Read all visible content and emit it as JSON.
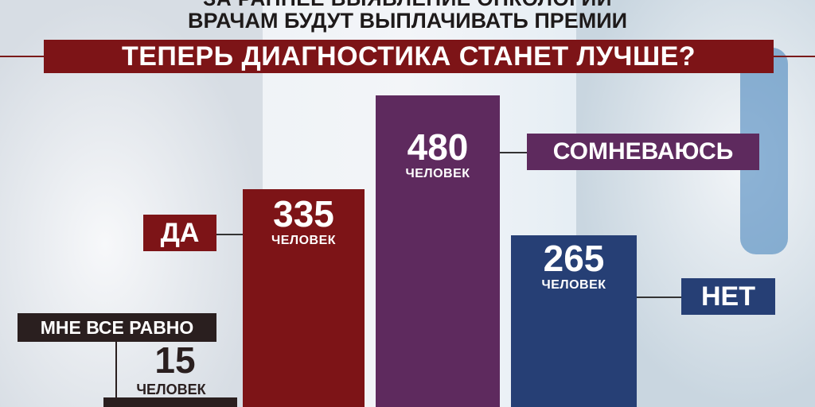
{
  "header": {
    "line0": "ЗА РАННЕЕ ВЫЯВЛЕНИЕ ОНКОЛОГИИ",
    "line1": "ВРАЧАМ БУДУТ ВЫПЛАЧИВАТЬ ПРЕМИИ",
    "question": "ТЕПЕРЬ ДИАГНОСТИКА СТАНЕТ ЛУЧШЕ?"
  },
  "chart_data": {
    "type": "bar",
    "title": "ТЕПЕРЬ ДИАГНОСТИКА СТАНЕТ ЛУЧШЕ?",
    "unit": "человек",
    "categories": [
      "МНЕ ВСЕ РАВНО",
      "ДА",
      "СОМНЕВАЮСЬ",
      "НЕТ"
    ],
    "values": [
      15,
      335,
      480,
      265
    ],
    "display": [
      {
        "label": "МНЕ ВСЕ РАВНО",
        "value": "15",
        "unit": "ЧЕЛОВЕК",
        "color": "#2a1f1f"
      },
      {
        "label": "ДА",
        "value": "335",
        "unit": "ЧЕЛОВЕК",
        "color": "#7d1417"
      },
      {
        "label": "СОМНЕВАЮСЬ",
        "value": "480",
        "unit": "ЧЕЛОВЕК",
        "color": "#5e2a5e"
      },
      {
        "label": "НЕТ",
        "value": "265",
        "unit": "ЧЕЛОВЕК",
        "color": "#263f75"
      }
    ]
  }
}
